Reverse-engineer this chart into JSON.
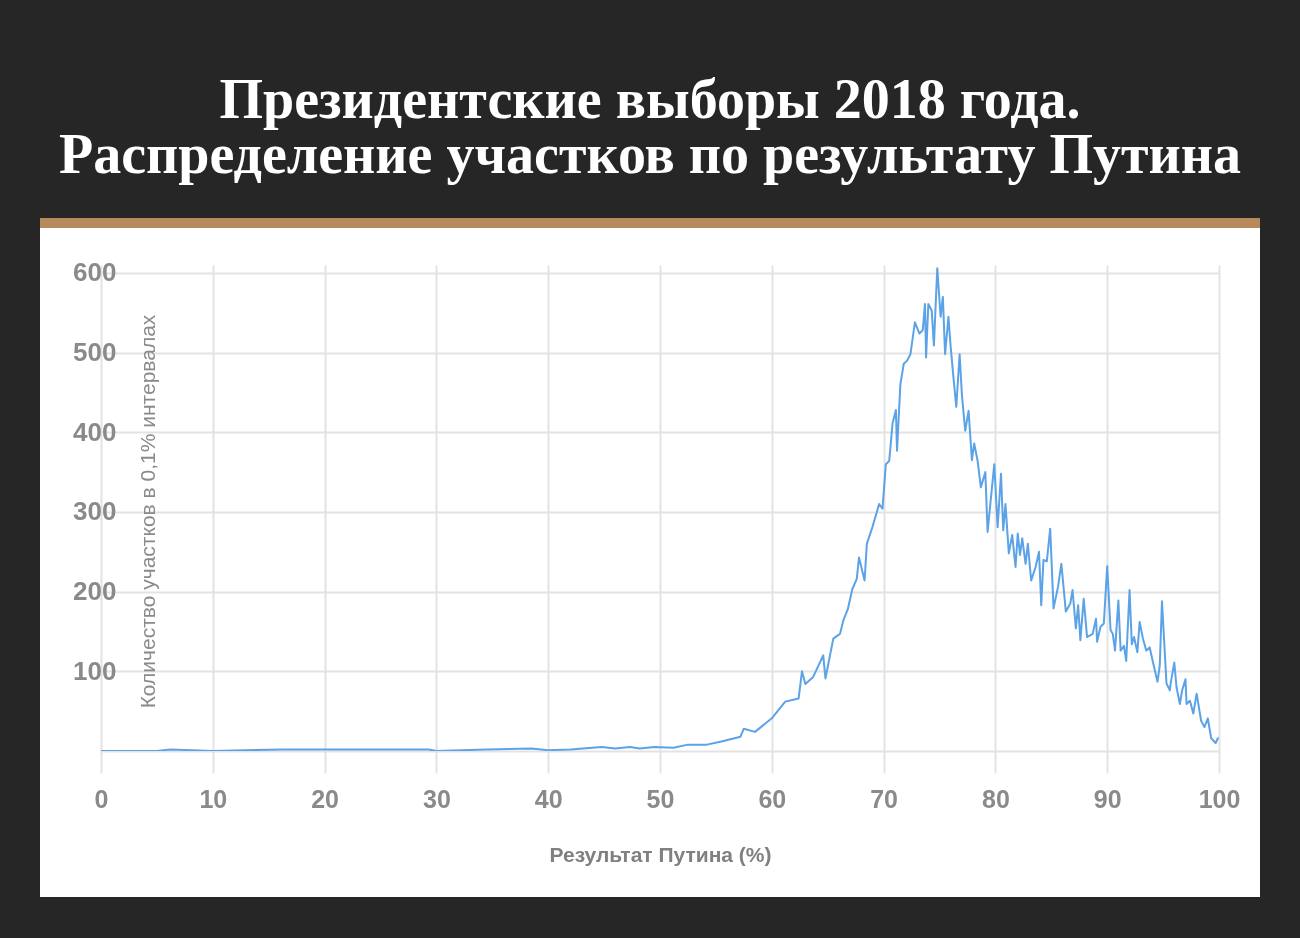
{
  "chart_data": {
    "type": "line",
    "title": "Президентские выборы 2018 года. Распределение участков по результату Путина",
    "xlabel": "Результат Путина (%)",
    "ylabel": "Количество участков в 0,1% интервалах",
    "x": [
      0,
      5,
      6.2,
      10,
      16.3,
      19.4,
      25.7,
      29.3,
      30,
      34.5,
      38.5,
      40,
      42,
      44.8,
      46,
      47.3,
      48.2,
      49.5,
      51.2,
      52.5,
      54.2,
      55.5,
      57.2,
      57.5,
      58.5,
      60,
      61.2,
      62.4,
      62.7,
      63,
      63.7,
      64.6,
      64.8,
      65.5,
      66.1,
      66.4,
      66.8,
      67.2,
      67.6,
      67.8,
      68.3,
      68.5,
      69,
      69.6,
      69.9,
      70.2,
      70.5,
      70.8,
      71.1,
      71.2,
      71.5,
      71.8,
      72.1,
      72.4,
      72.8,
      73.2,
      73.5,
      73.7,
      73.8,
      74,
      74.3,
      74.5,
      74.8,
      75.1,
      75.3,
      75.5,
      75.8,
      76,
      76.3,
      76.5,
      76.8,
      77,
      77.3,
      77.6,
      77.9,
      78.1,
      78.4,
      78.7,
      79.1,
      79.3,
      79.9,
      80.2,
      80.5,
      80.7,
      80.9,
      81.2,
      81.5,
      81.8,
      82,
      82.2,
      82.4,
      82.7,
      82.9,
      83.2,
      83.6,
      83.9,
      84.1,
      84.3,
      84.6,
      84.9,
      85.2,
      85.6,
      85.9,
      86.3,
      86.7,
      86.9,
      87.2,
      87.4,
      87.6,
      87.9,
      88.2,
      88.7,
      89,
      89.1,
      89.4,
      89.7,
      90,
      90.3,
      90.5,
      90.7,
      91,
      91.2,
      91.5,
      91.7,
      92,
      92.2,
      92.4,
      92.7,
      92.9,
      93.2,
      93.5,
      93.8,
      94.1,
      94.5,
      94.7,
      94.9,
      95.3,
      95.6,
      95.7,
      96,
      96.2,
      96.5,
      96.7,
      97,
      97.1,
      97.4,
      97.7,
      98,
      98.4,
      98.7,
      99,
      99.3,
      99.7,
      99.9
    ],
    "series": [
      {
        "color": "#5ba3e6",
        "values": [
          0,
          0,
          2,
          0,
          2,
          2,
          2,
          2,
          0,
          2,
          3,
          1,
          2,
          5,
          3,
          5,
          3,
          5,
          4,
          8,
          8,
          12,
          18,
          28,
          24,
          41,
          62,
          66,
          100,
          84,
          93,
          120,
          91,
          141,
          147,
          164,
          178,
          203,
          216,
          243,
          214,
          260,
          281,
          310,
          304,
          360,
          364,
          411,
          428,
          377,
          460,
          486,
          490,
          498,
          538,
          524,
          528,
          561,
          494,
          561,
          553,
          509,
          606,
          545,
          570,
          498,
          545,
          507,
          461,
          432,
          498,
          448,
          402,
          427,
          365,
          386,
          365,
          331,
          350,
          275,
          360,
          281,
          348,
          277,
          310,
          248,
          271,
          231,
          273,
          246,
          267,
          235,
          260,
          214,
          231,
          250,
          183,
          240,
          238,
          279,
          179,
          206,
          235,
          175,
          185,
          202,
          154,
          183,
          139,
          191,
          143,
          147,
          166,
          137,
          156,
          160,
          232,
          152,
          147,
          126,
          189,
          126,
          132,
          113,
          202,
          134,
          143,
          124,
          162,
          141,
          126,
          130,
          111,
          87,
          107,
          188,
          85,
          76,
          87,
          111,
          80,
          59,
          76,
          90,
          59,
          63,
          47,
          72,
          38,
          30,
          41,
          16,
          10,
          16
        ]
      }
    ],
    "xlim": [
      0,
      100
    ],
    "ylim": [
      0,
      610
    ],
    "xticks": [
      0,
      10,
      20,
      30,
      40,
      50,
      60,
      70,
      80,
      90,
      100
    ],
    "yticks": [
      {
        "value": 0,
        "label": null
      },
      100,
      200,
      300,
      400,
      500,
      600
    ],
    "grid": true,
    "line_style": "solid"
  }
}
